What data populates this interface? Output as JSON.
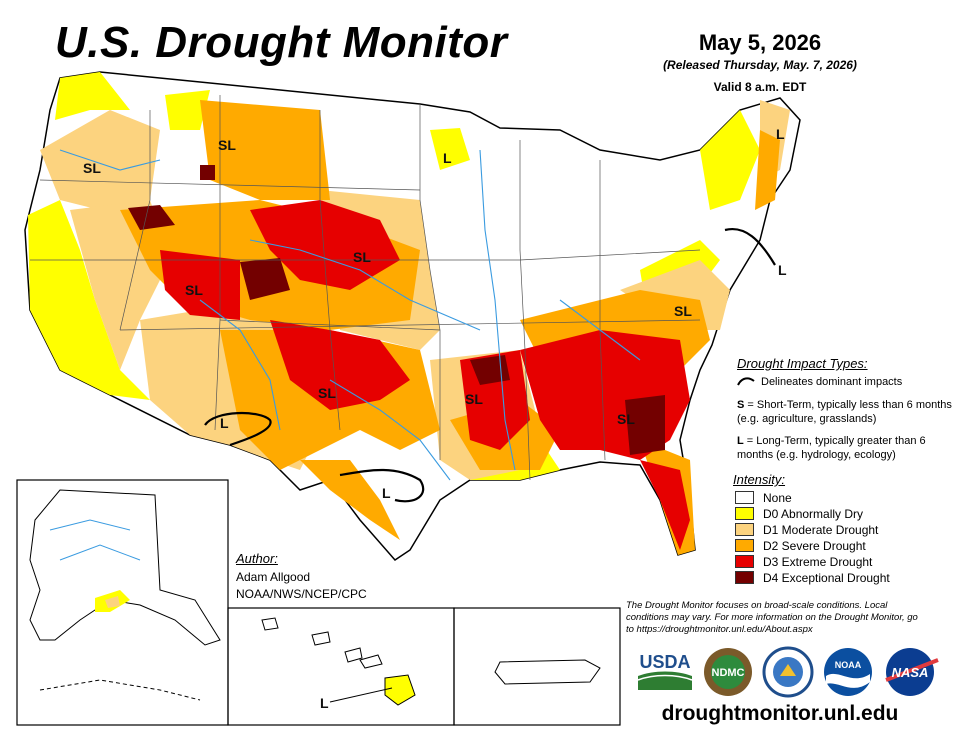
{
  "header": {
    "title": "U.S. Drought Monitor",
    "date": "May 5, 2026",
    "released": "(Released Thursday, May. 7, 2026)",
    "valid": "Valid 8 a.m. EDT"
  },
  "map_labels": {
    "sl": "SL",
    "l": "L"
  },
  "impact_types": {
    "title": "Drought Impact Types:",
    "line_label": "Delineates dominant impacts",
    "s_key": "S",
    "s_text": " = Short-Term, typically less than 6 months (e.g. agriculture, grasslands)",
    "l_key": "L",
    "l_text": " = Long-Term, typically greater than 6 months (e.g. hydrology, ecology)"
  },
  "intensity": {
    "title": "Intensity:",
    "levels": [
      {
        "label": "None",
        "color": "#ffffff"
      },
      {
        "label": "D0 Abnormally Dry",
        "color": "#ffff00"
      },
      {
        "label": "D1 Moderate Drought",
        "color": "#fcd37f"
      },
      {
        "label": "D2 Severe Drought",
        "color": "#ffaa00"
      },
      {
        "label": "D3 Extreme Drought",
        "color": "#e60000"
      },
      {
        "label": "D4 Exceptional Drought",
        "color": "#730000"
      }
    ]
  },
  "author": {
    "title": "Author:",
    "name": "Adam Allgood",
    "org": "NOAA/NWS/NCEP/CPC"
  },
  "footer": {
    "note": "The Drought Monitor focuses on broad-scale conditions. Local conditions may vary. For more information on the Drought Monitor, go to https://droughtmonitor.unl.edu/About.aspx",
    "site": "droughtmonitor.unl.edu"
  },
  "logos": {
    "usda": "USDA",
    "ndmc": "NDMC",
    "noaa": "NOAA",
    "nasa": "NASA"
  }
}
